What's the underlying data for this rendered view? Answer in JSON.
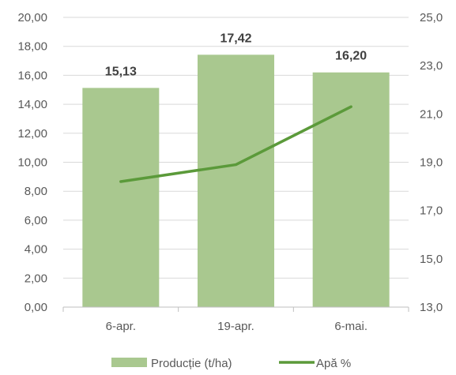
{
  "chart_data": {
    "type": "bar",
    "categories": [
      "6-apr.",
      "19-apr.",
      "6-mai."
    ],
    "series": [
      {
        "name": "Producție (t/ha)",
        "type": "bar",
        "axis": "left",
        "values": [
          15.13,
          17.42,
          16.2
        ],
        "labels": [
          "15,13",
          "17,42",
          "16,20"
        ],
        "color": "#a9c88f"
      },
      {
        "name": "Apă %",
        "type": "line",
        "axis": "right",
        "values": [
          18.2,
          18.9,
          21.3
        ],
        "color": "#5b9a3a"
      }
    ],
    "y_left": {
      "min": 0,
      "max": 20,
      "ticks": [
        0,
        2,
        4,
        6,
        8,
        10,
        12,
        14,
        16,
        18,
        20
      ],
      "tick_labels": [
        "0,00",
        "2,00",
        "4,00",
        "6,00",
        "8,00",
        "10,00",
        "12,00",
        "14,00",
        "16,00",
        "18,00",
        "20,00"
      ]
    },
    "y_right": {
      "min": 13,
      "max": 25,
      "ticks": [
        13,
        15,
        17,
        19,
        21,
        23,
        25
      ],
      "tick_labels": [
        "13,0",
        "15,0",
        "17,0",
        "19,0",
        "21,0",
        "23,0",
        "25,0"
      ]
    },
    "grid": true,
    "legend": "bottom",
    "title": "",
    "xlabel": "",
    "ylabel": ""
  }
}
